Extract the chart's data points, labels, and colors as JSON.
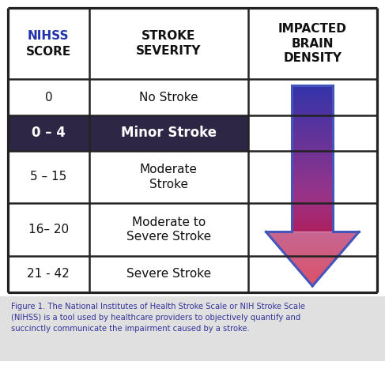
{
  "col1_header_nihss": "NIHSS",
  "col1_header_score": "SCORE",
  "col1_header_color": "#2233aa",
  "col2_header": "STROKE\nSEVERITY",
  "col3_header": "IMPACTED\nBRAIN\nDENSITY",
  "header_text_color": "#111111",
  "rows": [
    {
      "score": "0",
      "severity": "No Stroke",
      "highlight": false
    },
    {
      "score": "0 – 4",
      "severity": "Minor Stroke",
      "highlight": true
    },
    {
      "score": "5 – 15",
      "severity": "Moderate\nStroke",
      "highlight": false
    },
    {
      "score": "16– 20",
      "severity": "Moderate to\nSevere Stroke",
      "highlight": false
    },
    {
      "score": "21 - 42",
      "severity": "Severe Stroke",
      "highlight": false
    }
  ],
  "highlight_bg": "#2d2645",
  "highlight_fg": "#ffffff",
  "border_color": "#222222",
  "bg_color": "#ffffff",
  "footer_bg": "#e0e0e0",
  "footer_text": "Figure 1. The National Institutes of Health Stroke Scale or NIH Stroke Scale\n(NIHSS) is a tool used by healthcare providers to objectively quantify and\nsuccinctly communicate the impairment caused by a stroke.",
  "footer_text_color": "#333399",
  "arrow_color_top": "#3333aa",
  "arrow_color_mid": "#993388",
  "arrow_color_bot": "#cc0022",
  "arrow_outline": "#4455bb"
}
